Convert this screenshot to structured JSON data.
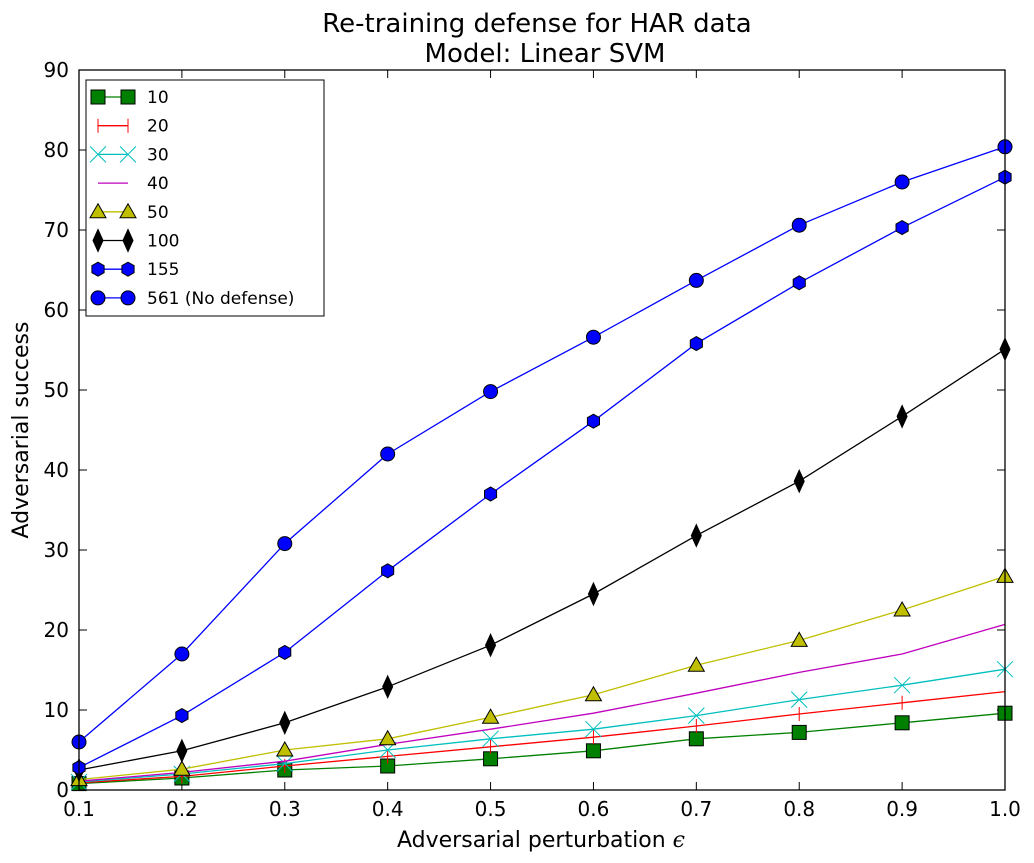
{
  "chart_data": {
    "type": "line",
    "title": "Re-training defense for HAR data",
    "subtitle": "Model: Linear SVM",
    "xlabel": "Adversarial perturbation",
    "xlabel_symbol": "ϵ",
    "ylabel": "Adversarial success",
    "xlim": [
      0.1,
      1.0
    ],
    "ylim": [
      0,
      90
    ],
    "xticks": [
      "0.1",
      "0.2",
      "0.3",
      "0.4",
      "0.5",
      "0.6",
      "0.7",
      "0.8",
      "0.9",
      "1.0"
    ],
    "yticks": [
      "0",
      "10",
      "20",
      "30",
      "40",
      "50",
      "60",
      "70",
      "80",
      "90"
    ],
    "grid": false,
    "legend_position": "top-left",
    "x": [
      0.1,
      0.2,
      0.3,
      0.4,
      0.5,
      0.6,
      0.7,
      0.8,
      0.9,
      1.0
    ],
    "series": [
      {
        "name": "10",
        "color": "#008000",
        "marker": "square",
        "values": [
          0.8,
          1.5,
          2.5,
          3.0,
          3.9,
          4.9,
          6.4,
          7.2,
          8.4,
          9.6
        ]
      },
      {
        "name": "20",
        "color": "#ff0000",
        "marker": "vline",
        "values": [
          0.9,
          1.7,
          3.0,
          4.2,
          5.4,
          6.6,
          8.0,
          9.5,
          10.9,
          12.3
        ]
      },
      {
        "name": "30",
        "color": "#00bfbf",
        "marker": "x",
        "values": [
          1.0,
          2.0,
          3.3,
          5.0,
          6.4,
          7.6,
          9.3,
          11.3,
          13.1,
          15.1
        ]
      },
      {
        "name": "40",
        "color": "#bf00bf",
        "marker": "none",
        "values": [
          1.1,
          2.2,
          3.6,
          5.7,
          7.6,
          9.6,
          12.1,
          14.7,
          17.0,
          20.7
        ]
      },
      {
        "name": "50",
        "color": "#bfbf00",
        "marker": "triangle",
        "values": [
          1.3,
          2.6,
          5.0,
          6.4,
          9.1,
          11.9,
          15.6,
          18.7,
          22.5,
          26.7
        ]
      },
      {
        "name": "100",
        "color": "#000000",
        "marker": "diamond",
        "values": [
          2.5,
          4.9,
          8.4,
          12.9,
          18.1,
          24.5,
          31.8,
          38.6,
          46.7,
          55.1
        ]
      },
      {
        "name": "155",
        "color": "#0000ff",
        "marker": "hexagon",
        "values": [
          2.8,
          9.3,
          17.2,
          27.4,
          37.0,
          46.1,
          55.8,
          63.4,
          70.3,
          76.6
        ]
      },
      {
        "name": "561 (No defense)",
        "color": "#0000ff",
        "marker": "circle",
        "values": [
          6.0,
          17.0,
          30.8,
          42.0,
          49.8,
          56.6,
          63.7,
          70.6,
          76.0,
          80.4
        ]
      }
    ]
  }
}
